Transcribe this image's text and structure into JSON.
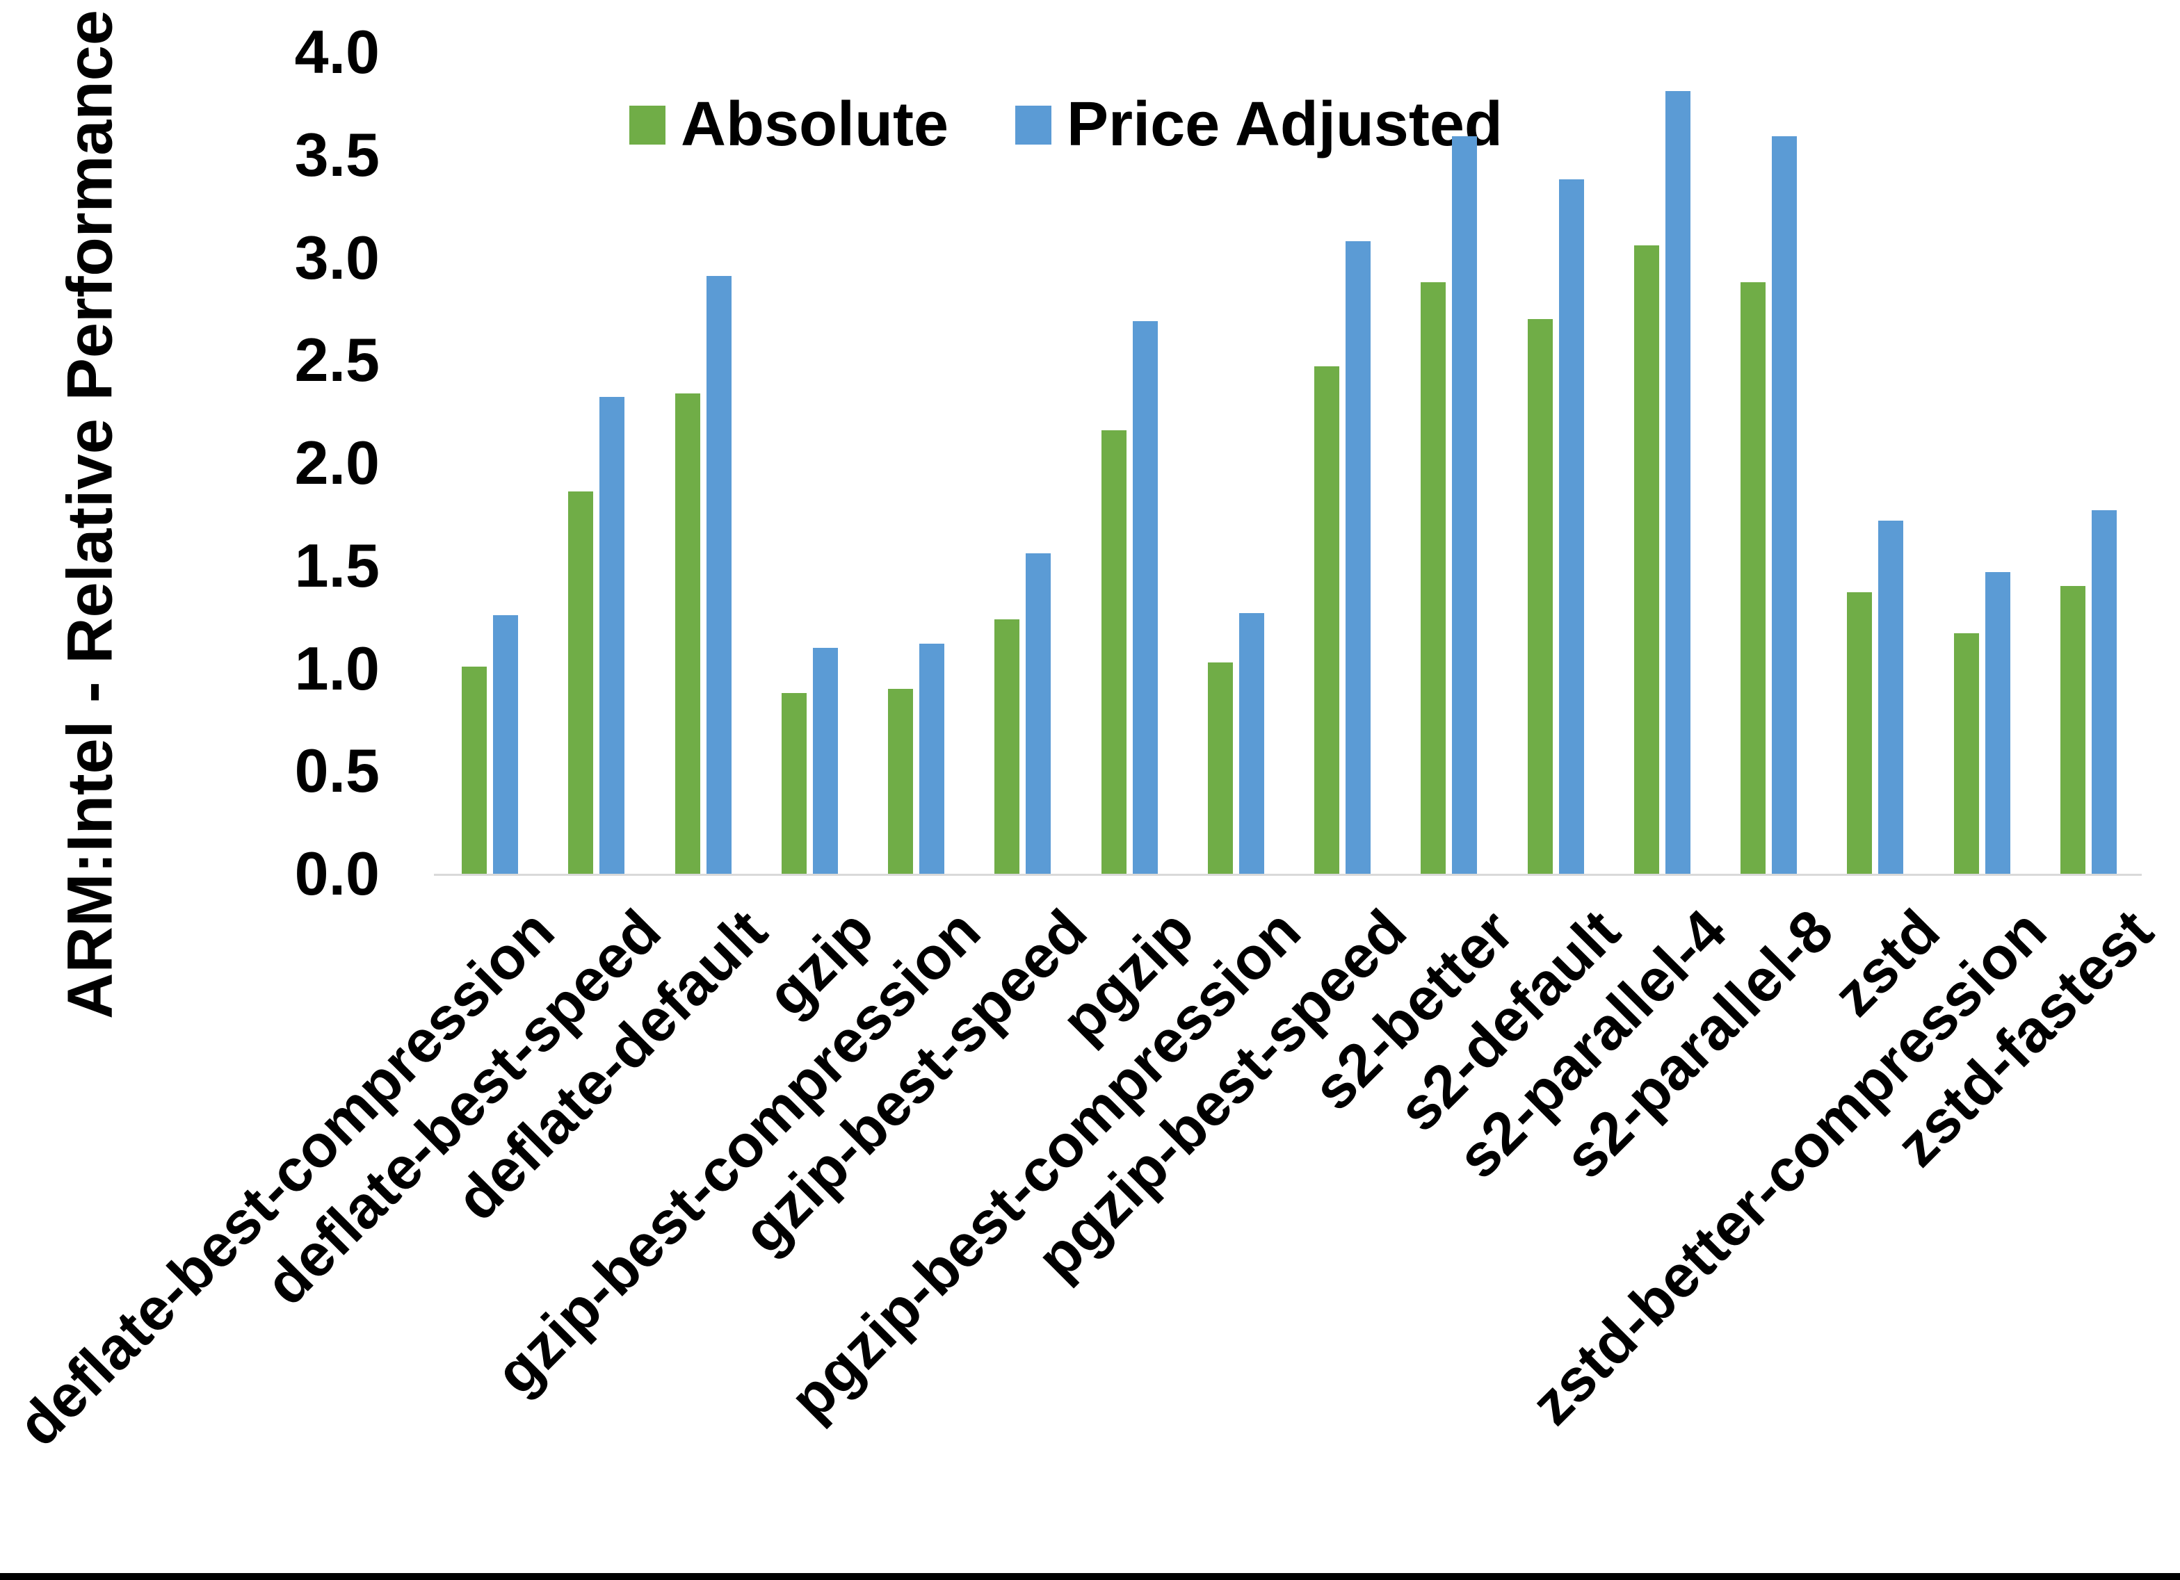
{
  "colors": {
    "absolute_green": "#70AD47",
    "price_adjusted_blue": "#5B9BD5",
    "axis_line_gray": "#D9D9D9",
    "text_black": "#000000"
  },
  "legend": {
    "items": [
      {
        "label": "Absolute",
        "color": "#70AD47"
      },
      {
        "label": "Price Adjusted",
        "color": "#5B9BD5"
      }
    ]
  },
  "chart_data": {
    "type": "bar",
    "title": "",
    "xlabel": "",
    "ylabel": "ARM:Intel - Relative Performance",
    "ylim": [
      0,
      4.0
    ],
    "ytick_step": 0.5,
    "yticks": [
      "4.0",
      "3.5",
      "3.0",
      "2.5",
      "2.0",
      "1.5",
      "1.0",
      "0.5",
      "0.0"
    ],
    "grid": false,
    "legend_position": "top-center",
    "categories": [
      "deflate-best-compression",
      "deflate-best-speed",
      "deflate-default",
      "gzip",
      "gzip-best-compression",
      "gzip-best-speed",
      "pgzip",
      "pgzip-best-compression",
      "pgzip-best-speed",
      "s2-better",
      "s2-default",
      "s2-parallel-4",
      "s2-parallel-8",
      "zstd",
      "zstd-better-compression",
      "zstd-fastest"
    ],
    "series": [
      {
        "name": "Absolute",
        "color": "#70AD47",
        "values": [
          1.01,
          1.86,
          2.34,
          0.88,
          0.9,
          1.24,
          2.16,
          1.03,
          2.47,
          2.88,
          2.7,
          3.06,
          2.88,
          1.37,
          1.17,
          1.4
        ]
      },
      {
        "name": "Price Adjusted",
        "color": "#5B9BD5",
        "values": [
          1.26,
          2.32,
          2.91,
          1.1,
          1.12,
          1.56,
          2.69,
          1.27,
          3.08,
          3.59,
          3.38,
          3.81,
          3.59,
          1.72,
          1.47,
          1.77
        ]
      }
    ]
  }
}
